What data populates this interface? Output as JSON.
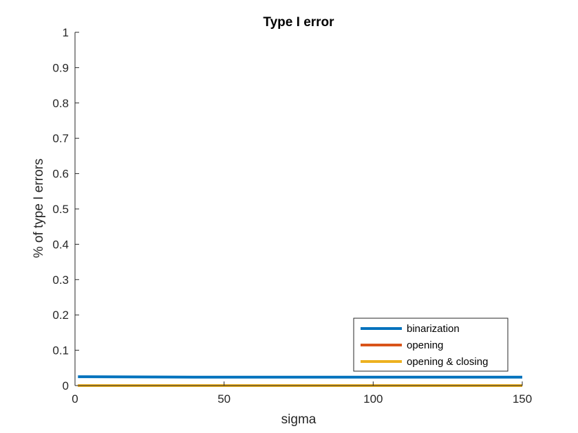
{
  "chart_data": {
    "type": "line",
    "title": "Type I error",
    "xlabel": "sigma",
    "ylabel": "% of type I errors",
    "xlim": [
      0,
      150
    ],
    "ylim": [
      0,
      1
    ],
    "xticks": [
      0,
      50,
      100,
      150
    ],
    "yticks": [
      0,
      0.1,
      0.2,
      0.3,
      0.4,
      0.5,
      0.6,
      0.7,
      0.8,
      0.9,
      1
    ],
    "grid": false,
    "legend_position": "bottom-right",
    "series": [
      {
        "name": "binarization",
        "color": "#0072BD",
        "x": [
          1,
          40,
          150
        ],
        "y": [
          0.025,
          0.024,
          0.024
        ]
      },
      {
        "name": "opening",
        "color": "#D95319",
        "x": [
          1,
          150
        ],
        "y": [
          0,
          0
        ]
      },
      {
        "name": "opening & closing",
        "color": "#EDB120",
        "x": [
          1,
          150
        ],
        "y": [
          0,
          0
        ]
      }
    ]
  }
}
